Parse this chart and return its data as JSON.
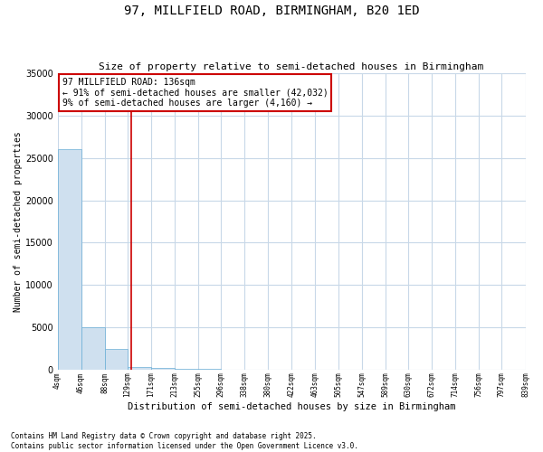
{
  "title_line1": "97, MILLFIELD ROAD, BIRMINGHAM, B20 1ED",
  "title_line2": "Size of property relative to semi-detached houses in Birmingham",
  "xlabel": "Distribution of semi-detached houses by size in Birmingham",
  "ylabel": "Number of semi-detached properties",
  "annotation_title": "97 MILLFIELD ROAD: 136sqm",
  "annotation_line2": "← 91% of semi-detached houses are smaller (42,032)",
  "annotation_line3": "9% of semi-detached houses are larger (4,160) →",
  "property_size": 136,
  "copyright_line1": "Contains HM Land Registry data © Crown copyright and database right 2025.",
  "copyright_line2": "Contains public sector information licensed under the Open Government Licence v3.0.",
  "bar_edges": [
    4,
    46,
    88,
    129,
    171,
    213,
    255,
    296,
    338,
    380,
    422,
    463,
    505,
    547,
    589,
    630,
    672,
    714,
    756,
    797,
    839
  ],
  "bar_heights": [
    26100,
    5000,
    2400,
    350,
    180,
    100,
    60,
    40,
    30,
    20,
    15,
    12,
    10,
    8,
    6,
    5,
    4,
    3,
    2,
    1
  ],
  "bar_color": "#cfe0ef",
  "bar_edge_color": "#6aaed6",
  "red_line_color": "#cc0000",
  "annotation_box_color": "#cc0000",
  "grid_color": "#c8d8e8",
  "ylim": [
    0,
    35000
  ],
  "yticks": [
    0,
    5000,
    10000,
    15000,
    20000,
    25000,
    30000,
    35000
  ],
  "background_color": "#ffffff"
}
